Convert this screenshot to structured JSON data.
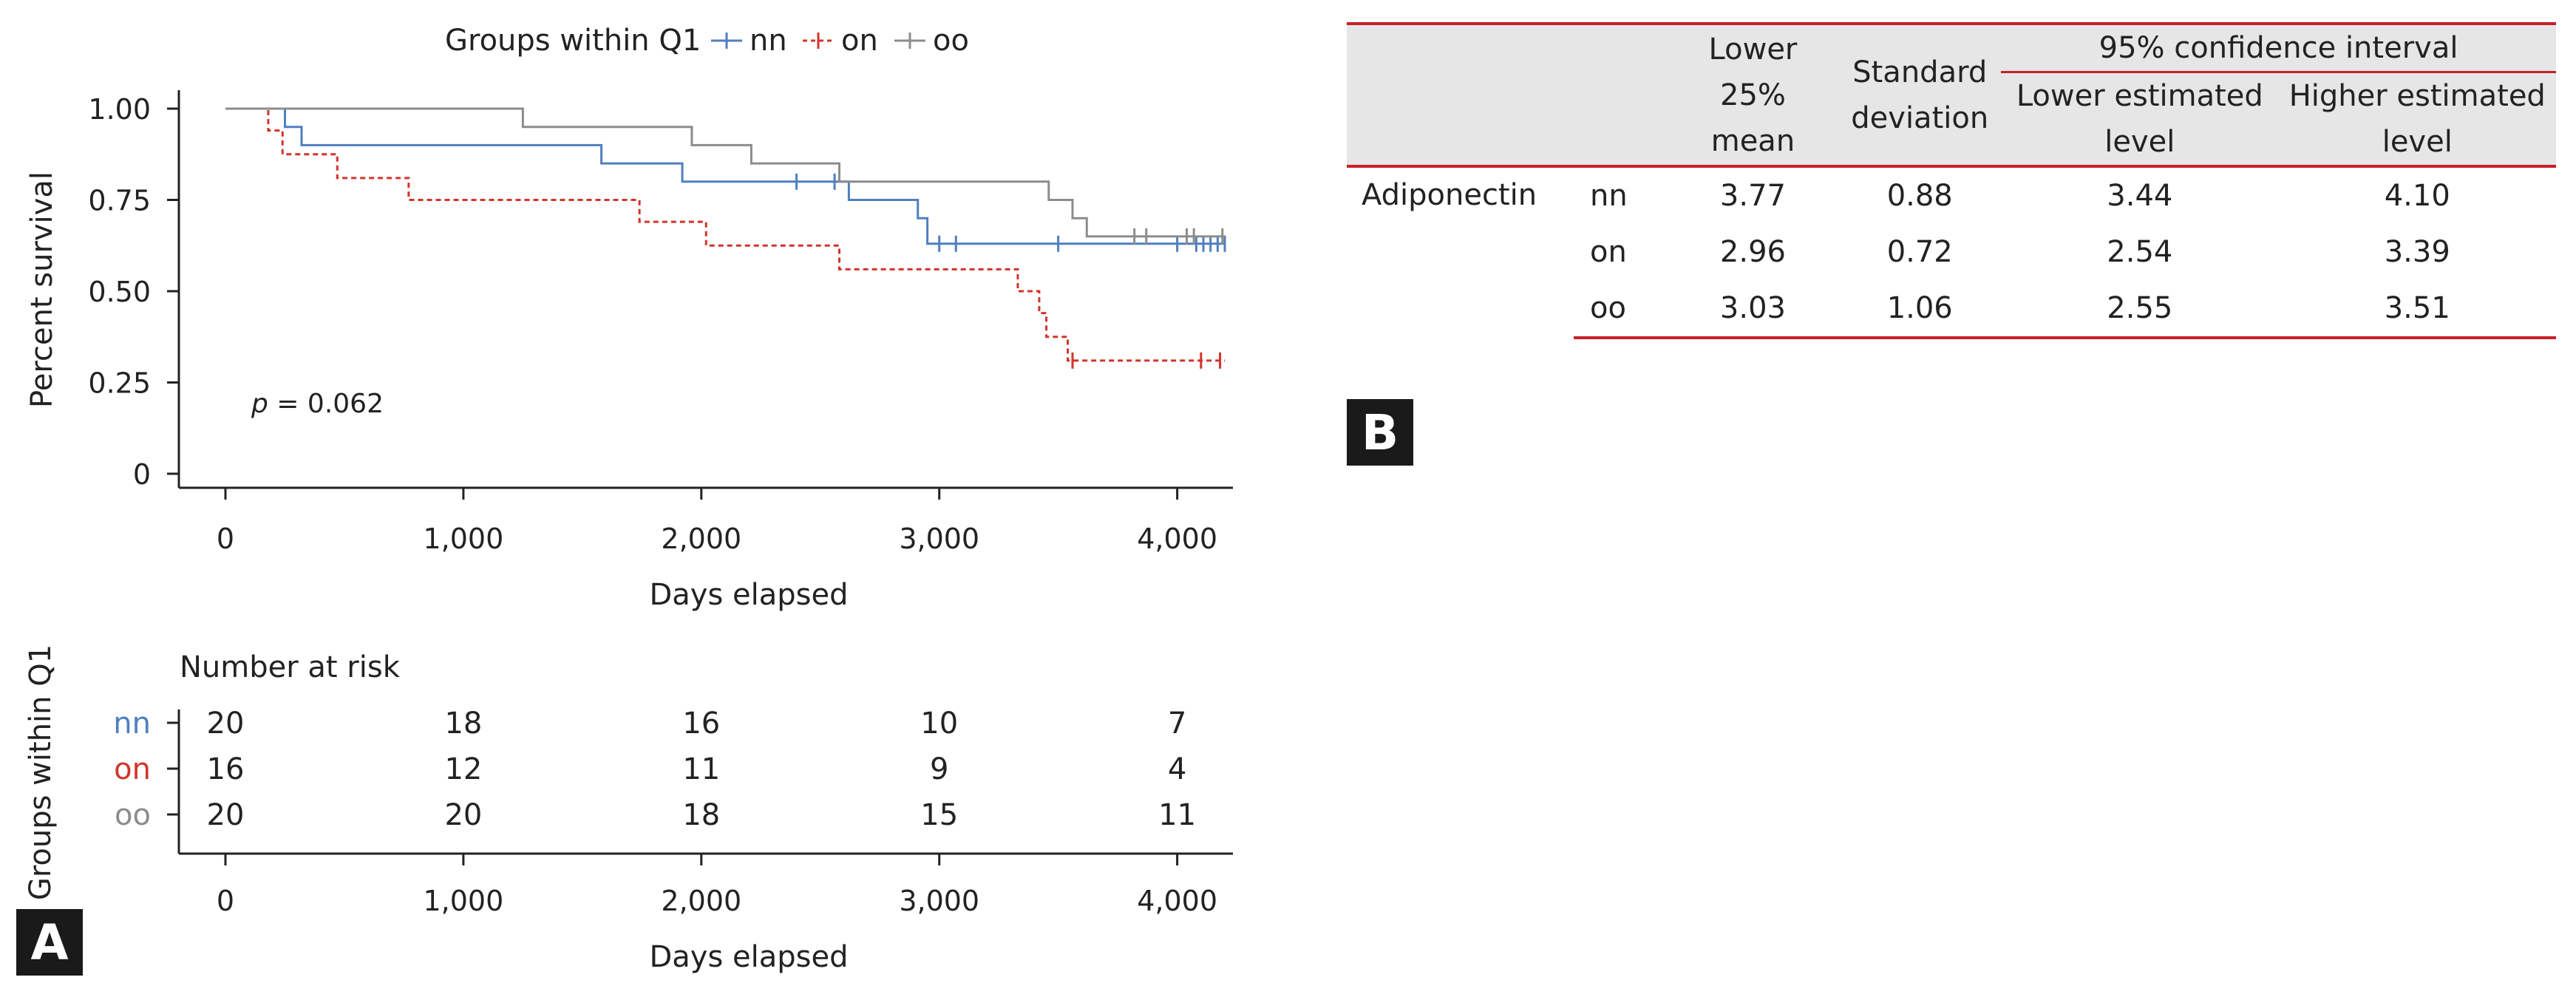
{
  "panel_labels": {
    "a": "A",
    "b": "B"
  },
  "colors": {
    "nn": "#4f7fbf",
    "on": "#d0352b",
    "oo": "#8c8c8c",
    "rule": "#c8202a"
  },
  "chart_data": [
    {
      "type": "line",
      "subtype": "kaplan-meier",
      "legend_title": "Groups within Q1",
      "legend_position": "top",
      "xlabel": "Days elapsed",
      "ylabel": "Percent survival",
      "xlim": [
        0,
        4200
      ],
      "ylim": [
        0,
        1.0
      ],
      "xticks": [
        0,
        1000,
        2000,
        3000,
        4000
      ],
      "xtick_labels": [
        "0",
        "1,000",
        "2,000",
        "3,000",
        "4,000"
      ],
      "yticks": [
        0,
        0.25,
        0.5,
        0.75,
        1.0
      ],
      "ytick_labels": [
        "0",
        "0.25",
        "0.50",
        "0.75",
        "1.00"
      ],
      "annotation": {
        "p_label": "p",
        "p_value": " = 0.062"
      },
      "series": [
        {
          "name": "nn",
          "color": "#4f7fbf",
          "dash": "solid",
          "steps": [
            [
              0,
              1.0
            ],
            [
              250,
              0.95
            ],
            [
              320,
              0.9
            ],
            [
              1580,
              0.85
            ],
            [
              1920,
              0.8
            ],
            [
              2620,
              0.75
            ],
            [
              2910,
              0.7
            ],
            [
              2950,
              0.63
            ],
            [
              4200,
              0.63
            ]
          ],
          "censored": [
            [
              2400,
              0.8
            ],
            [
              2560,
              0.8
            ],
            [
              3000,
              0.63
            ],
            [
              3070,
              0.63
            ],
            [
              3500,
              0.63
            ],
            [
              4000,
              0.63
            ],
            [
              4080,
              0.63
            ],
            [
              4110,
              0.63
            ],
            [
              4140,
              0.63
            ],
            [
              4170,
              0.63
            ],
            [
              4200,
              0.63
            ]
          ]
        },
        {
          "name": "on",
          "color": "#d0352b",
          "dash": "dashed",
          "steps": [
            [
              0,
              1.0
            ],
            [
              180,
              0.94
            ],
            [
              240,
              0.875
            ],
            [
              470,
              0.81
            ],
            [
              770,
              0.75
            ],
            [
              1740,
              0.69
            ],
            [
              2020,
              0.625
            ],
            [
              2580,
              0.56
            ],
            [
              3330,
              0.5
            ],
            [
              3420,
              0.44
            ],
            [
              3450,
              0.375
            ],
            [
              3540,
              0.31
            ],
            [
              4200,
              0.31
            ]
          ],
          "censored": [
            [
              3560,
              0.31
            ],
            [
              4100,
              0.31
            ],
            [
              4180,
              0.31
            ]
          ]
        },
        {
          "name": "oo",
          "color": "#8c8c8c",
          "dash": "solid",
          "steps": [
            [
              0,
              1.0
            ],
            [
              1250,
              0.95
            ],
            [
              1960,
              0.9
            ],
            [
              2210,
              0.85
            ],
            [
              2580,
              0.8
            ],
            [
              3460,
              0.75
            ],
            [
              3560,
              0.7
            ],
            [
              3620,
              0.65
            ],
            [
              4200,
              0.65
            ]
          ],
          "censored": [
            [
              3820,
              0.65
            ],
            [
              3870,
              0.65
            ],
            [
              4040,
              0.65
            ],
            [
              4070,
              0.65
            ],
            [
              4190,
              0.65
            ]
          ]
        }
      ]
    },
    {
      "type": "table",
      "title": "Number at risk",
      "ylabel": "Groups within Q1",
      "xlabel": "Days elapsed",
      "xticks": [
        0,
        1000,
        2000,
        3000,
        4000
      ],
      "xtick_labels": [
        "0",
        "1,000",
        "2,000",
        "3,000",
        "4,000"
      ],
      "rows": [
        {
          "group": "nn",
          "color": "#4f7fbf",
          "values": [
            "20",
            "18",
            "16",
            "10",
            "7"
          ]
        },
        {
          "group": "on",
          "color": "#d0352b",
          "values": [
            "16",
            "12",
            "11",
            "9",
            "4"
          ]
        },
        {
          "group": "oo",
          "color": "#8c8c8c",
          "values": [
            "20",
            "20",
            "18",
            "15",
            "11"
          ]
        }
      ]
    }
  ],
  "stats_table": {
    "headers": {
      "lower_mean": [
        "Lower 25%",
        "mean"
      ],
      "std": [
        "Standard",
        "deviation"
      ],
      "ci": "95% confidence interval",
      "lower_level": [
        "Lower estimated",
        "level"
      ],
      "higher_level": [
        "Higher estimated",
        "level"
      ]
    },
    "variable": "Adiponectin",
    "rows": [
      {
        "group": "nn",
        "mean": "3.77",
        "sd": "0.88",
        "lower": "3.44",
        "upper": "4.10"
      },
      {
        "group": "on",
        "mean": "2.96",
        "sd": "0.72",
        "lower": "2.54",
        "upper": "3.39"
      },
      {
        "group": "oo",
        "mean": "3.03",
        "sd": "1.06",
        "lower": "2.55",
        "upper": "3.51"
      }
    ]
  }
}
